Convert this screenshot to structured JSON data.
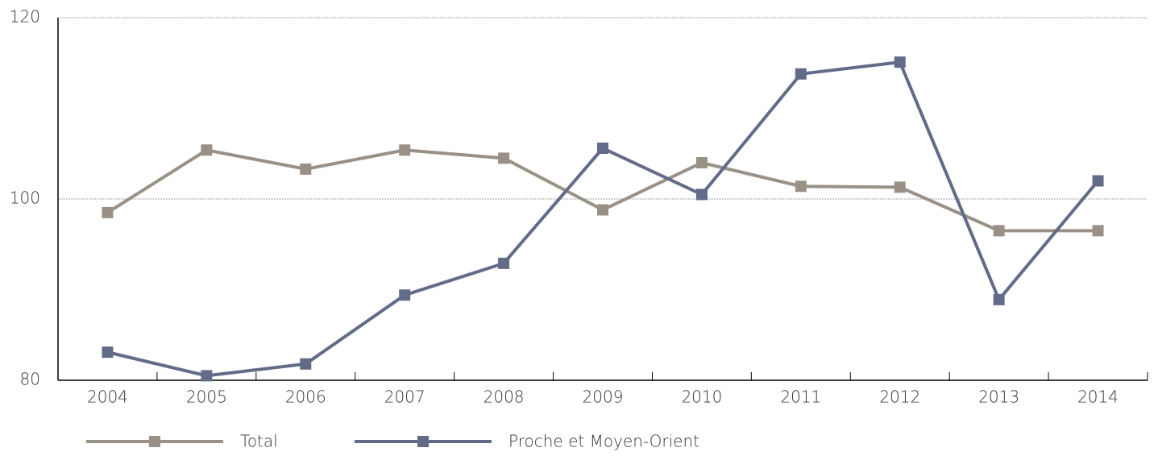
{
  "chart_data": {
    "type": "line",
    "categories": [
      "2004",
      "2005",
      "2006",
      "2007",
      "2008",
      "2009",
      "2010",
      "2011",
      "2012",
      "2013",
      "2014"
    ],
    "series": [
      {
        "name": "Total",
        "color": "#9a9186",
        "values": [
          98.5,
          105.4,
          103.3,
          105.4,
          104.5,
          98.8,
          104.0,
          101.4,
          101.3,
          96.5,
          96.5
        ]
      },
      {
        "name": "Proche et Moyen-Orient",
        "color": "#626b87",
        "values": [
          83.1,
          80.5,
          81.8,
          89.4,
          92.9,
          105.6,
          100.5,
          113.8,
          115.1,
          88.9,
          102.0
        ]
      }
    ],
    "ylim": [
      80,
      120
    ],
    "yticks": [
      80,
      100,
      120
    ],
    "grid": true
  }
}
